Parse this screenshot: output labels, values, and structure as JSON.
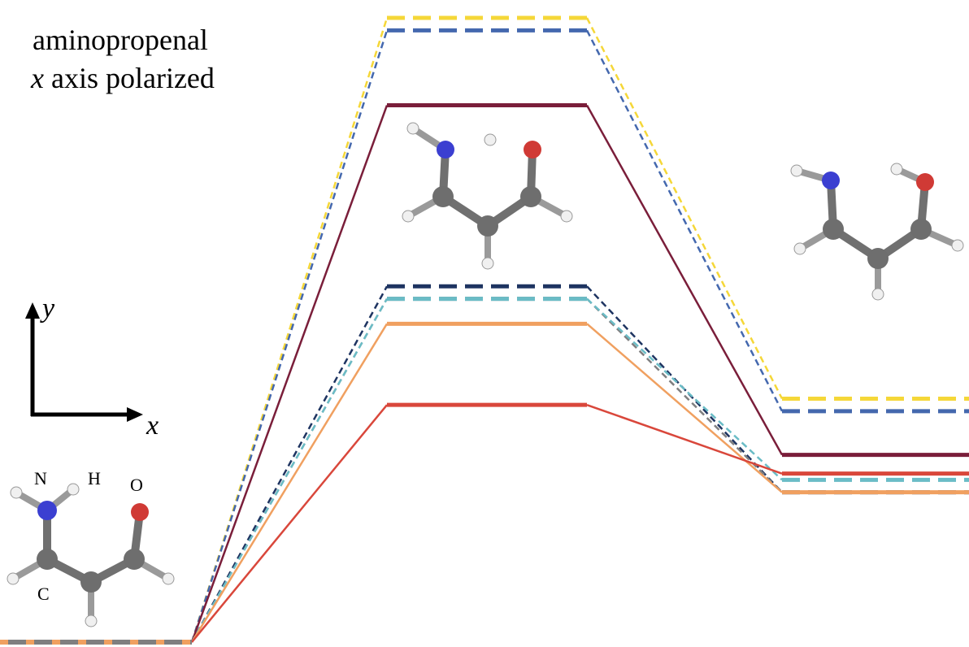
{
  "title": {
    "line1": "aminopropenal",
    "line2_italic": "x",
    "line2_rest": " axis polarized"
  },
  "axes": {
    "x_label": "x",
    "y_label": "y"
  },
  "atom_labels": {
    "N": "N",
    "H": "H",
    "O": "O",
    "C": "C"
  },
  "colors": {
    "yellow_dashed": "#F5D738",
    "blue_dashed": "#4468AE",
    "maroon_solid": "#7A1E3A",
    "navy_dashed": "#1E3461",
    "gray_dashed": "#7F7F80",
    "orange_solid": "#F0A060",
    "red_solid": "#D9473B",
    "teal_dashed": "#6ABCC6",
    "carbon": "#707070",
    "nitrogen": "#3B3FD1",
    "oxygen": "#D03A35",
    "hydrogen": "#F2F2F2"
  },
  "levels": [
    {
      "id": "yellow-dashed",
      "color": "#F5D738",
      "style": "dashed",
      "stages": [
        0,
        1,
        0.39
      ]
    },
    {
      "id": "blue-dashed",
      "color": "#4468AE",
      "style": "dashed",
      "stages": [
        0,
        0.98,
        0.37
      ]
    },
    {
      "id": "maroon-solid",
      "color": "#7A1E3A",
      "style": "solid",
      "stages": [
        0,
        0.86,
        0.3
      ]
    },
    {
      "id": "navy-dashed",
      "color": "#1E3461",
      "style": "dashed",
      "stages": [
        0,
        0.57,
        0.24
      ]
    },
    {
      "id": "gray-dashed",
      "color": "#7F7F80",
      "style": "dashed",
      "stages": [
        0,
        0.55,
        0.24
      ]
    },
    {
      "id": "teal-dashed",
      "color": "#6ABCC6",
      "style": "dashed",
      "stages": [
        0,
        0.55,
        0.26
      ]
    },
    {
      "id": "orange-solid",
      "color": "#F0A060",
      "style": "solid",
      "stages": [
        0,
        0.51,
        0.24
      ]
    },
    {
      "id": "red-solid",
      "color": "#D9473B",
      "style": "solid",
      "stages": [
        0,
        0.38,
        0.27
      ]
    }
  ]
}
